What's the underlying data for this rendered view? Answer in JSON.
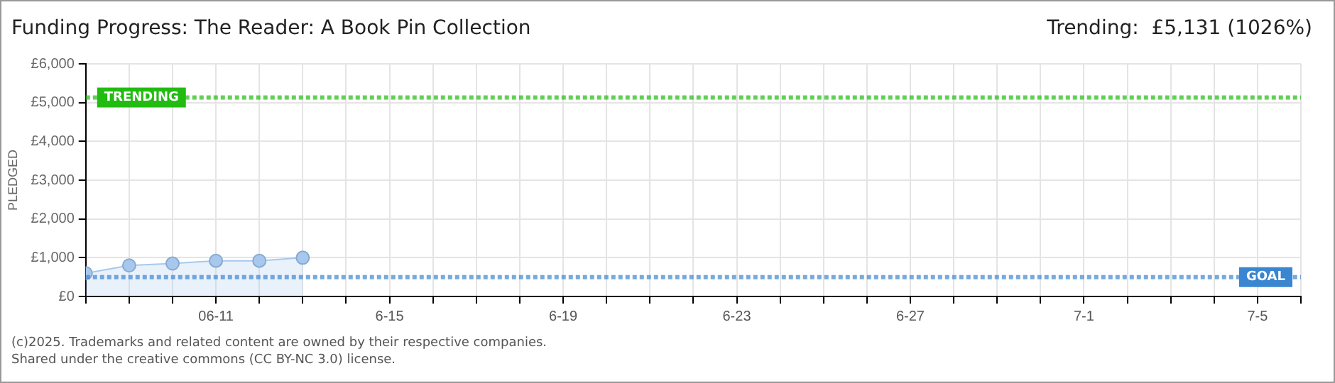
{
  "chart_data": {
    "type": "area",
    "title": "Funding Progress: The Reader: A Book Pin Collection",
    "subtitle": "Trending:  £5,131 (1026%)",
    "ylabel": "PLEDGED",
    "x": [
      "2025-06-08",
      "2025-06-09",
      "2025-06-10",
      "2025-06-11",
      "2025-06-12",
      "2025-06-13"
    ],
    "series": [
      {
        "color": "#a6c8ee",
        "values": [
          600,
          800,
          850,
          920,
          920,
          1000
        ]
      }
    ],
    "xlim": [
      "2025-06-08",
      "2025-07-06"
    ],
    "xticks": [
      {
        "value": "2025-06-08",
        "label": null
      },
      {
        "value": "2025-06-09",
        "label": null
      },
      {
        "value": "2025-06-10",
        "label": null
      },
      {
        "value": "2025-06-11",
        "label": "06-11"
      },
      {
        "value": "2025-06-12",
        "label": null
      },
      {
        "value": "2025-06-13",
        "label": null
      },
      {
        "value": "2025-06-14",
        "label": null
      },
      {
        "value": "2025-06-15",
        "label": "6-15"
      },
      {
        "value": "2025-06-16",
        "label": null
      },
      {
        "value": "2025-06-17",
        "label": null
      },
      {
        "value": "2025-06-18",
        "label": null
      },
      {
        "value": "2025-06-19",
        "label": "6-19"
      },
      {
        "value": "2025-06-20",
        "label": null
      },
      {
        "value": "2025-06-21",
        "label": null
      },
      {
        "value": "2025-06-22",
        "label": null
      },
      {
        "value": "2025-06-23",
        "label": "6-23"
      },
      {
        "value": "2025-06-24",
        "label": null
      },
      {
        "value": "2025-06-25",
        "label": null
      },
      {
        "value": "2025-06-26",
        "label": null
      },
      {
        "value": "2025-06-27",
        "label": "6-27"
      },
      {
        "value": "2025-06-28",
        "label": null
      },
      {
        "value": "2025-06-29",
        "label": null
      },
      {
        "value": "2025-06-30",
        "label": null
      },
      {
        "value": "2025-07-01",
        "label": "7-1"
      },
      {
        "value": "2025-07-02",
        "label": null
      },
      {
        "value": "2025-07-03",
        "label": null
      },
      {
        "value": "2025-07-04",
        "label": null
      },
      {
        "value": "2025-07-05",
        "label": "7-5"
      },
      {
        "value": "2025-07-06",
        "label": null
      }
    ],
    "ylim": [
      0,
      6000
    ],
    "yticks": [
      {
        "value": 0,
        "label": "£0"
      },
      {
        "value": 1000,
        "label": "£1,000"
      },
      {
        "value": 2000,
        "label": "£2,000"
      },
      {
        "value": 3000,
        "label": "£3,000"
      },
      {
        "value": 4000,
        "label": "£4,000"
      },
      {
        "value": 5000,
        "label": "£5,000"
      },
      {
        "value": 6000,
        "label": "£6,000"
      }
    ],
    "grid": true,
    "marker": "circle",
    "legend": false,
    "ref_lines": [
      {
        "axis": "y",
        "value": 5131,
        "label": "TRENDING",
        "color": "#22bb11",
        "line_style": "dotted"
      },
      {
        "axis": "y",
        "value": 500,
        "label": "GOAL",
        "color": "#3a86d0",
        "line_style": "dotted"
      }
    ],
    "annotations": [
      "(c)2025. Trademarks and related content are owned by their respective companies.",
      "Shared under the creative commons (CC BY-NC 3.0) license."
    ]
  }
}
